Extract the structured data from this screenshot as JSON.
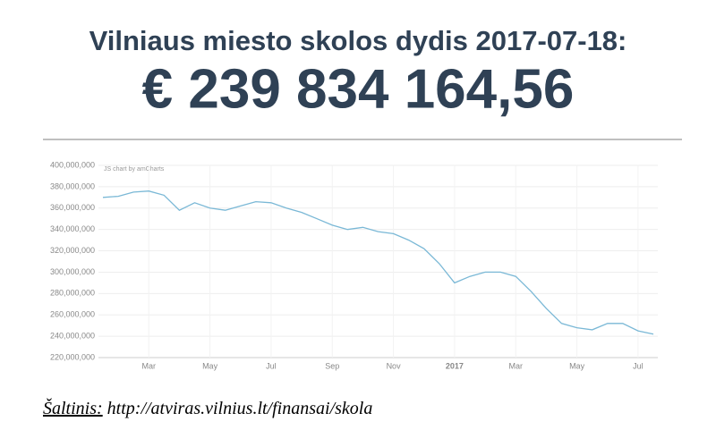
{
  "header": {
    "title": "Vilniaus miesto skolos dydis 2017-07-18:",
    "amount": "€ 239 834 164,56"
  },
  "chart_data": {
    "type": "line",
    "credit": "JS chart by amCharts",
    "color": "#7ab8d6",
    "grid": true,
    "categories": [
      null,
      null,
      null,
      "Mar",
      null,
      null,
      null,
      "May",
      null,
      null,
      null,
      "Jul",
      null,
      null,
      null,
      "Sep",
      null,
      null,
      null,
      "Nov",
      null,
      null,
      null,
      "2017",
      null,
      null,
      null,
      "Mar",
      null,
      null,
      null,
      "May",
      null,
      null,
      null,
      "Jul",
      null
    ],
    "values": [
      370000000,
      371000000,
      375000000,
      376000000,
      372000000,
      358000000,
      365000000,
      360000000,
      358000000,
      362000000,
      366000000,
      365000000,
      360000000,
      356000000,
      350000000,
      344000000,
      340000000,
      342000000,
      338000000,
      336000000,
      330000000,
      322000000,
      308000000,
      290000000,
      296000000,
      300000000,
      300000000,
      296000000,
      282000000,
      266000000,
      252000000,
      248000000,
      246000000,
      252000000,
      252000000,
      245000000,
      242000000
    ],
    "ylim": [
      220000000,
      400000000
    ],
    "yticks": [
      {
        "value": 220000000,
        "label": "220,000,000"
      },
      {
        "value": 240000000,
        "label": "240,000,000"
      },
      {
        "value": 260000000,
        "label": "260,000,000"
      },
      {
        "value": 280000000,
        "label": "280,000,000"
      },
      {
        "value": 300000000,
        "label": "300,000,000"
      },
      {
        "value": 320000000,
        "label": "320,000,000"
      },
      {
        "value": 340000000,
        "label": "340,000,000"
      },
      {
        "value": 360000000,
        "label": "360,000,000"
      },
      {
        "value": 380000000,
        "label": "380,000,000"
      },
      {
        "value": 400000000,
        "label": "400,000,000"
      }
    ]
  },
  "source": {
    "label": "Šaltinis:",
    "url": "http://atviras.vilnius.lt/finansai/skola"
  }
}
